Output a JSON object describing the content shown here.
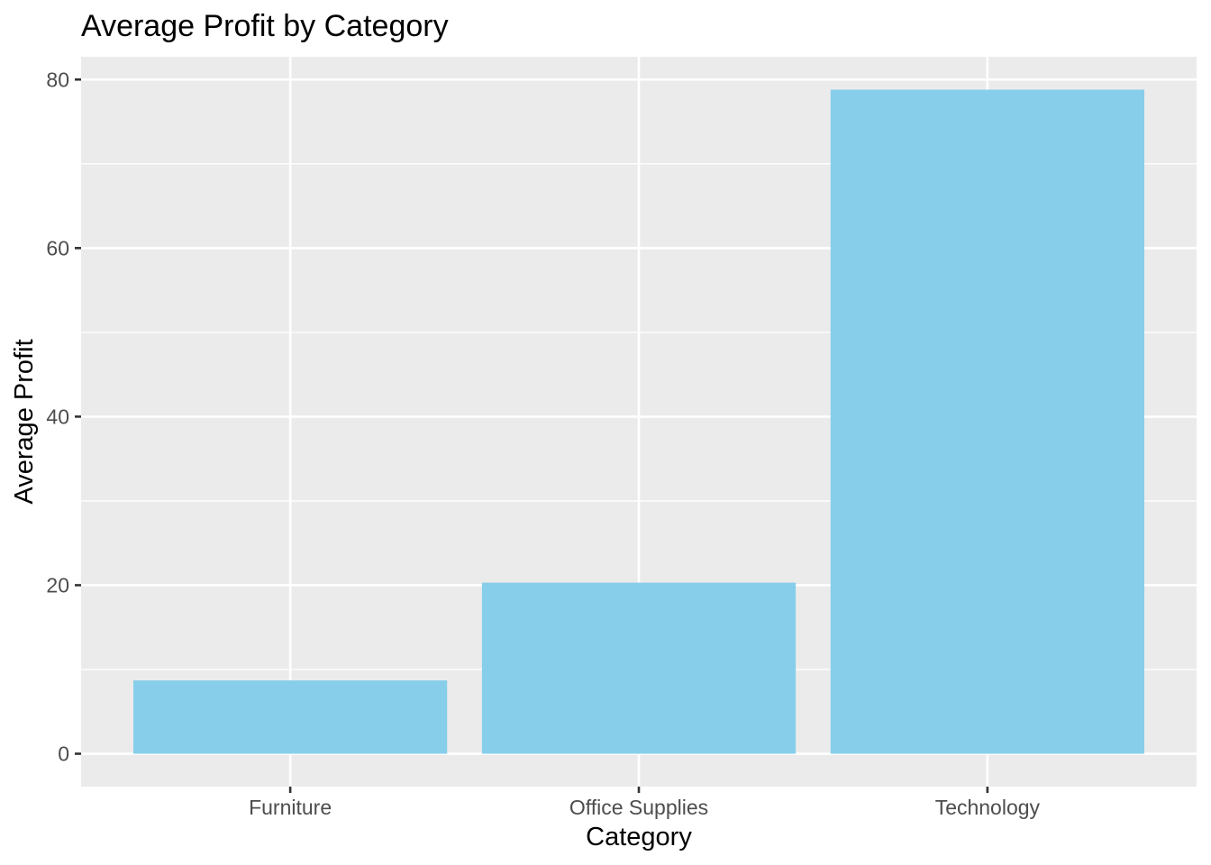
{
  "chart_data": {
    "type": "bar",
    "title": "Average Profit by Category",
    "xlabel": "Category",
    "ylabel": "Average Profit",
    "categories": [
      "Furniture",
      "Office Supplies",
      "Technology"
    ],
    "values": [
      8.7,
      20.3,
      78.8
    ],
    "ylim": [
      -3.9,
      82.7
    ],
    "yticks": [
      0,
      20,
      40,
      60,
      80
    ],
    "yticks_minor": [
      10,
      30,
      50,
      70
    ],
    "grid": true,
    "bar_color": "#87CEEB",
    "panel_color": "#EBEBEB",
    "gridline_color": "#FFFFFF"
  }
}
